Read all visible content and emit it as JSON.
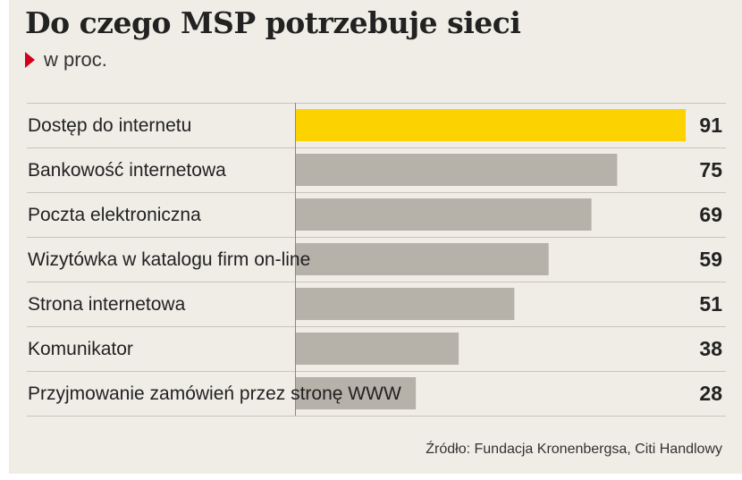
{
  "title": "Do czego MSP potrzebuje sieci",
  "subtitle": "w proc.",
  "source": "Źródło: Fundacja Kronenbergsa, Citi Handlowy",
  "colors": {
    "background": "#efede6",
    "highlight_bar": "#fcd200",
    "bar": "#b6b1a9",
    "grid_line": "#c9c5bd",
    "accent_triangle": "#d0021b",
    "text": "#222222"
  },
  "icons": {
    "subtitle_marker": "red-triangle-icon"
  },
  "chart_data": {
    "type": "bar",
    "orientation": "horizontal",
    "title": "Do czego MSP potrzebuje sieci",
    "subtitle": "w proc.",
    "categories": [
      "Dostęp do internetu",
      "Bankowość internetowa",
      "Poczta elektroniczna",
      "Wizytówka w katalogu firm on-line",
      "Strona internetowa",
      "Komunikator",
      "Przyjmowanie zamówień przez stronę WWW"
    ],
    "values": [
      91,
      75,
      69,
      59,
      51,
      38,
      28
    ],
    "value_labels": [
      "91",
      "75",
      "69",
      "59",
      "51",
      "38",
      "28"
    ],
    "highlight_index": 0,
    "xlim": [
      0,
      91
    ],
    "grid": false,
    "legend": "none"
  }
}
